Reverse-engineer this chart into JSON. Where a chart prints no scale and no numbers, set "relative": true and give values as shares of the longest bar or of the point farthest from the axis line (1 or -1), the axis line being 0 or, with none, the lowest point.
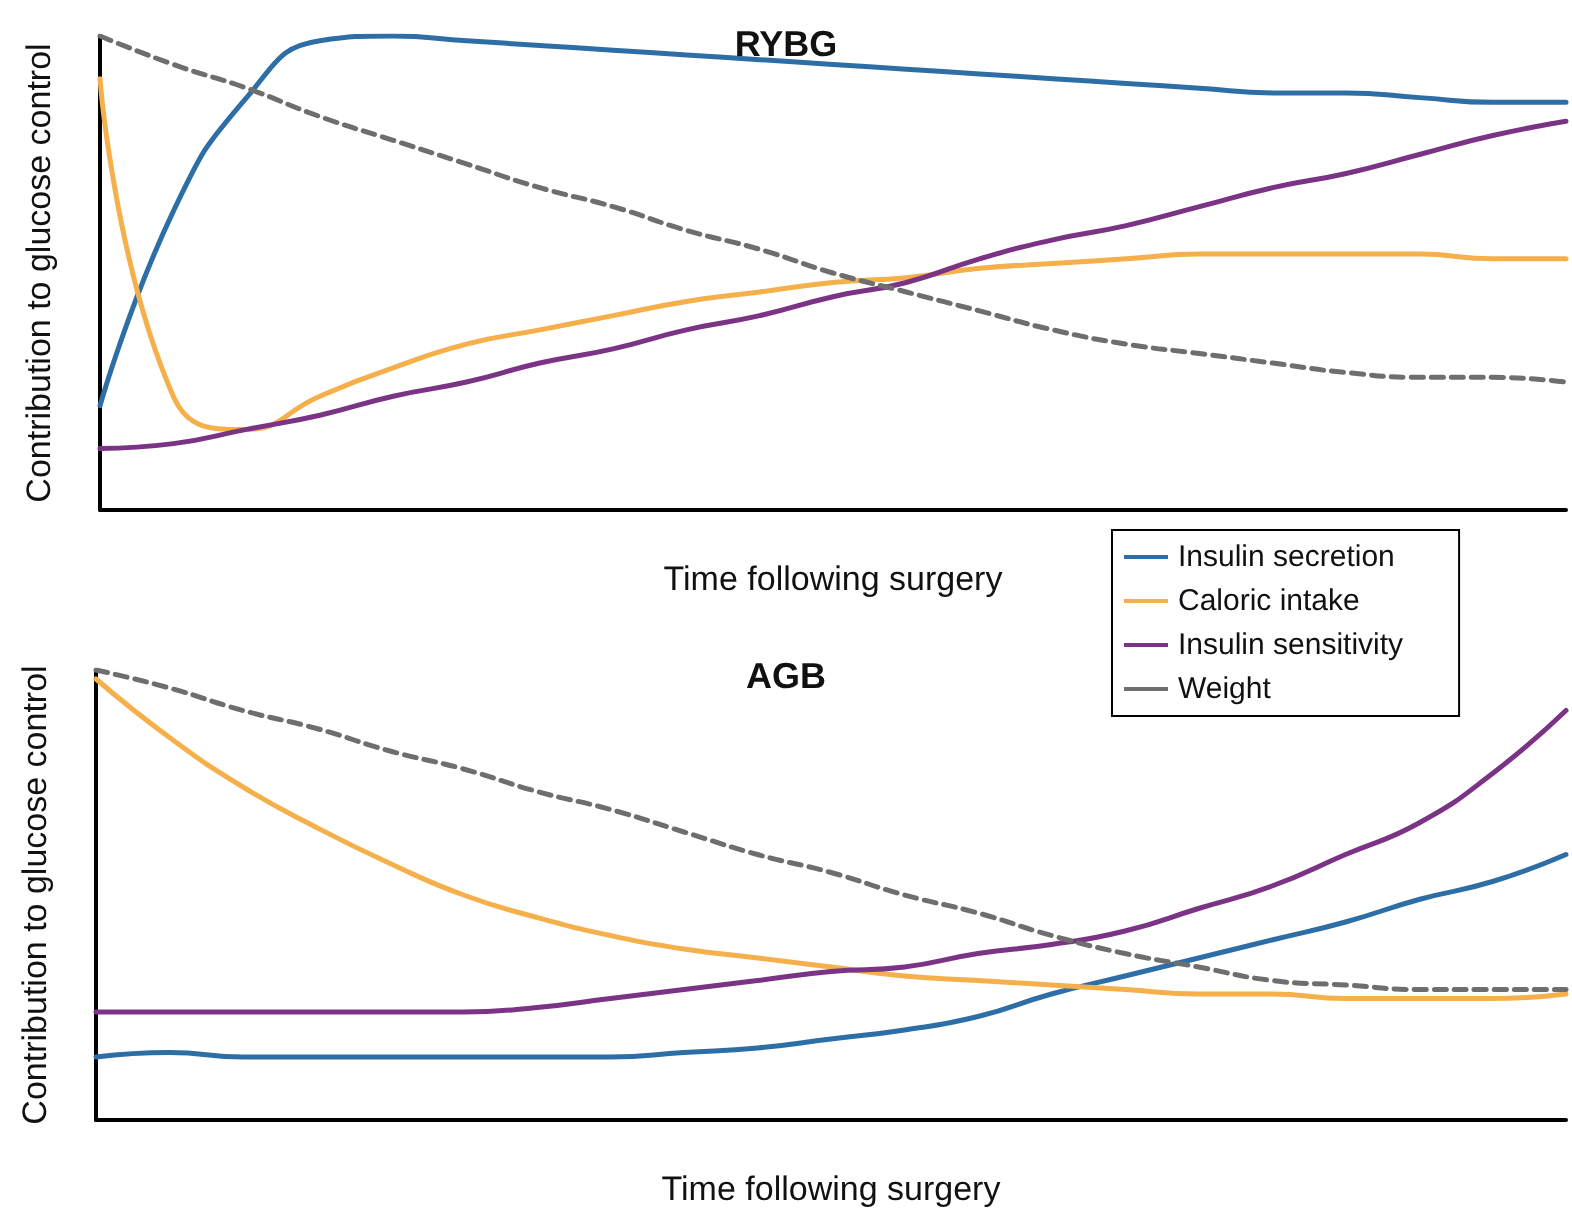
{
  "chart_data": [
    {
      "type": "line",
      "title": "RYBG",
      "xlabel": "Time following surgery",
      "ylabel": "Contribution to glucose control",
      "relative": true,
      "marker": "none",
      "legend": "bottom right",
      "categories": [
        null,
        null,
        null,
        null,
        null,
        null,
        null,
        null,
        null,
        null,
        null,
        null,
        null,
        null,
        null,
        null,
        null,
        null,
        null,
        null,
        null
      ],
      "series": [
        {
          "name": "Insulin secretion",
          "color": "#2e6ea6",
          "line_style": "solid",
          "values": [
            0.22,
            0.63,
            0.87,
            0.99,
            1.0,
            0.99,
            0.98,
            0.97,
            0.96,
            0.95,
            0.94,
            0.93,
            0.92,
            0.91,
            0.9,
            0.89,
            0.88,
            0.88,
            0.87,
            0.86,
            0.86
          ]
        },
        {
          "name": "Caloric intake",
          "color": "#f5b04b",
          "line_style": "solid",
          "values": [
            0.91,
            0.24,
            0.17,
            0.24,
            0.3,
            0.35,
            0.38,
            0.41,
            0.44,
            0.46,
            0.48,
            0.49,
            0.51,
            0.52,
            0.53,
            0.54,
            0.54,
            0.54,
            0.54,
            0.53,
            0.53
          ]
        },
        {
          "name": "Insulin sensitivity",
          "color": "#7b3385",
          "line_style": "solid",
          "values": [
            0.13,
            0.14,
            0.17,
            0.2,
            0.24,
            0.27,
            0.31,
            0.34,
            0.38,
            0.41,
            0.45,
            0.48,
            0.53,
            0.57,
            0.6,
            0.64,
            0.68,
            0.71,
            0.75,
            0.79,
            0.82
          ]
        },
        {
          "name": "Weight",
          "color": "#6e6e6e",
          "line_style": "dashed",
          "values": [
            1.0,
            0.94,
            0.89,
            0.83,
            0.78,
            0.73,
            0.68,
            0.64,
            0.59,
            0.55,
            0.5,
            0.46,
            0.42,
            0.38,
            0.35,
            0.33,
            0.31,
            0.29,
            0.28,
            0.28,
            0.27
          ]
        }
      ]
    },
    {
      "type": "line",
      "title": "AGB",
      "xlabel": "Time following surgery",
      "ylabel": "Contribution to glucose control",
      "relative": true,
      "marker": "none",
      "categories": [
        null,
        null,
        null,
        null,
        null,
        null,
        null,
        null,
        null,
        null,
        null,
        null,
        null,
        null,
        null,
        null,
        null,
        null,
        null,
        null,
        null
      ],
      "series": [
        {
          "color": "#2e6ea6",
          "line_style": "solid",
          "values": [
            0.14,
            0.15,
            0.14,
            0.14,
            0.14,
            0.14,
            0.14,
            0.14,
            0.15,
            0.16,
            0.18,
            0.2,
            0.23,
            0.28,
            0.32,
            0.36,
            0.4,
            0.44,
            0.49,
            0.53,
            0.59
          ]
        },
        {
          "color": "#f5b04b",
          "line_style": "solid",
          "values": [
            0.98,
            0.85,
            0.74,
            0.65,
            0.57,
            0.5,
            0.45,
            0.41,
            0.38,
            0.36,
            0.34,
            0.32,
            0.31,
            0.3,
            0.29,
            0.28,
            0.28,
            0.27,
            0.27,
            0.27,
            0.28
          ]
        },
        {
          "color": "#7b3385",
          "line_style": "solid",
          "values": [
            0.24,
            0.24,
            0.24,
            0.24,
            0.24,
            0.24,
            0.25,
            0.27,
            0.29,
            0.31,
            0.33,
            0.34,
            0.37,
            0.39,
            0.42,
            0.47,
            0.52,
            0.59,
            0.66,
            0.77,
            0.91
          ]
        },
        {
          "color": "#6e6e6e",
          "line_style": "dashed",
          "values": [
            1.0,
            0.96,
            0.91,
            0.87,
            0.82,
            0.78,
            0.73,
            0.69,
            0.64,
            0.59,
            0.55,
            0.5,
            0.46,
            0.41,
            0.37,
            0.34,
            0.31,
            0.3,
            0.29,
            0.29,
            0.29
          ]
        }
      ]
    }
  ]
}
